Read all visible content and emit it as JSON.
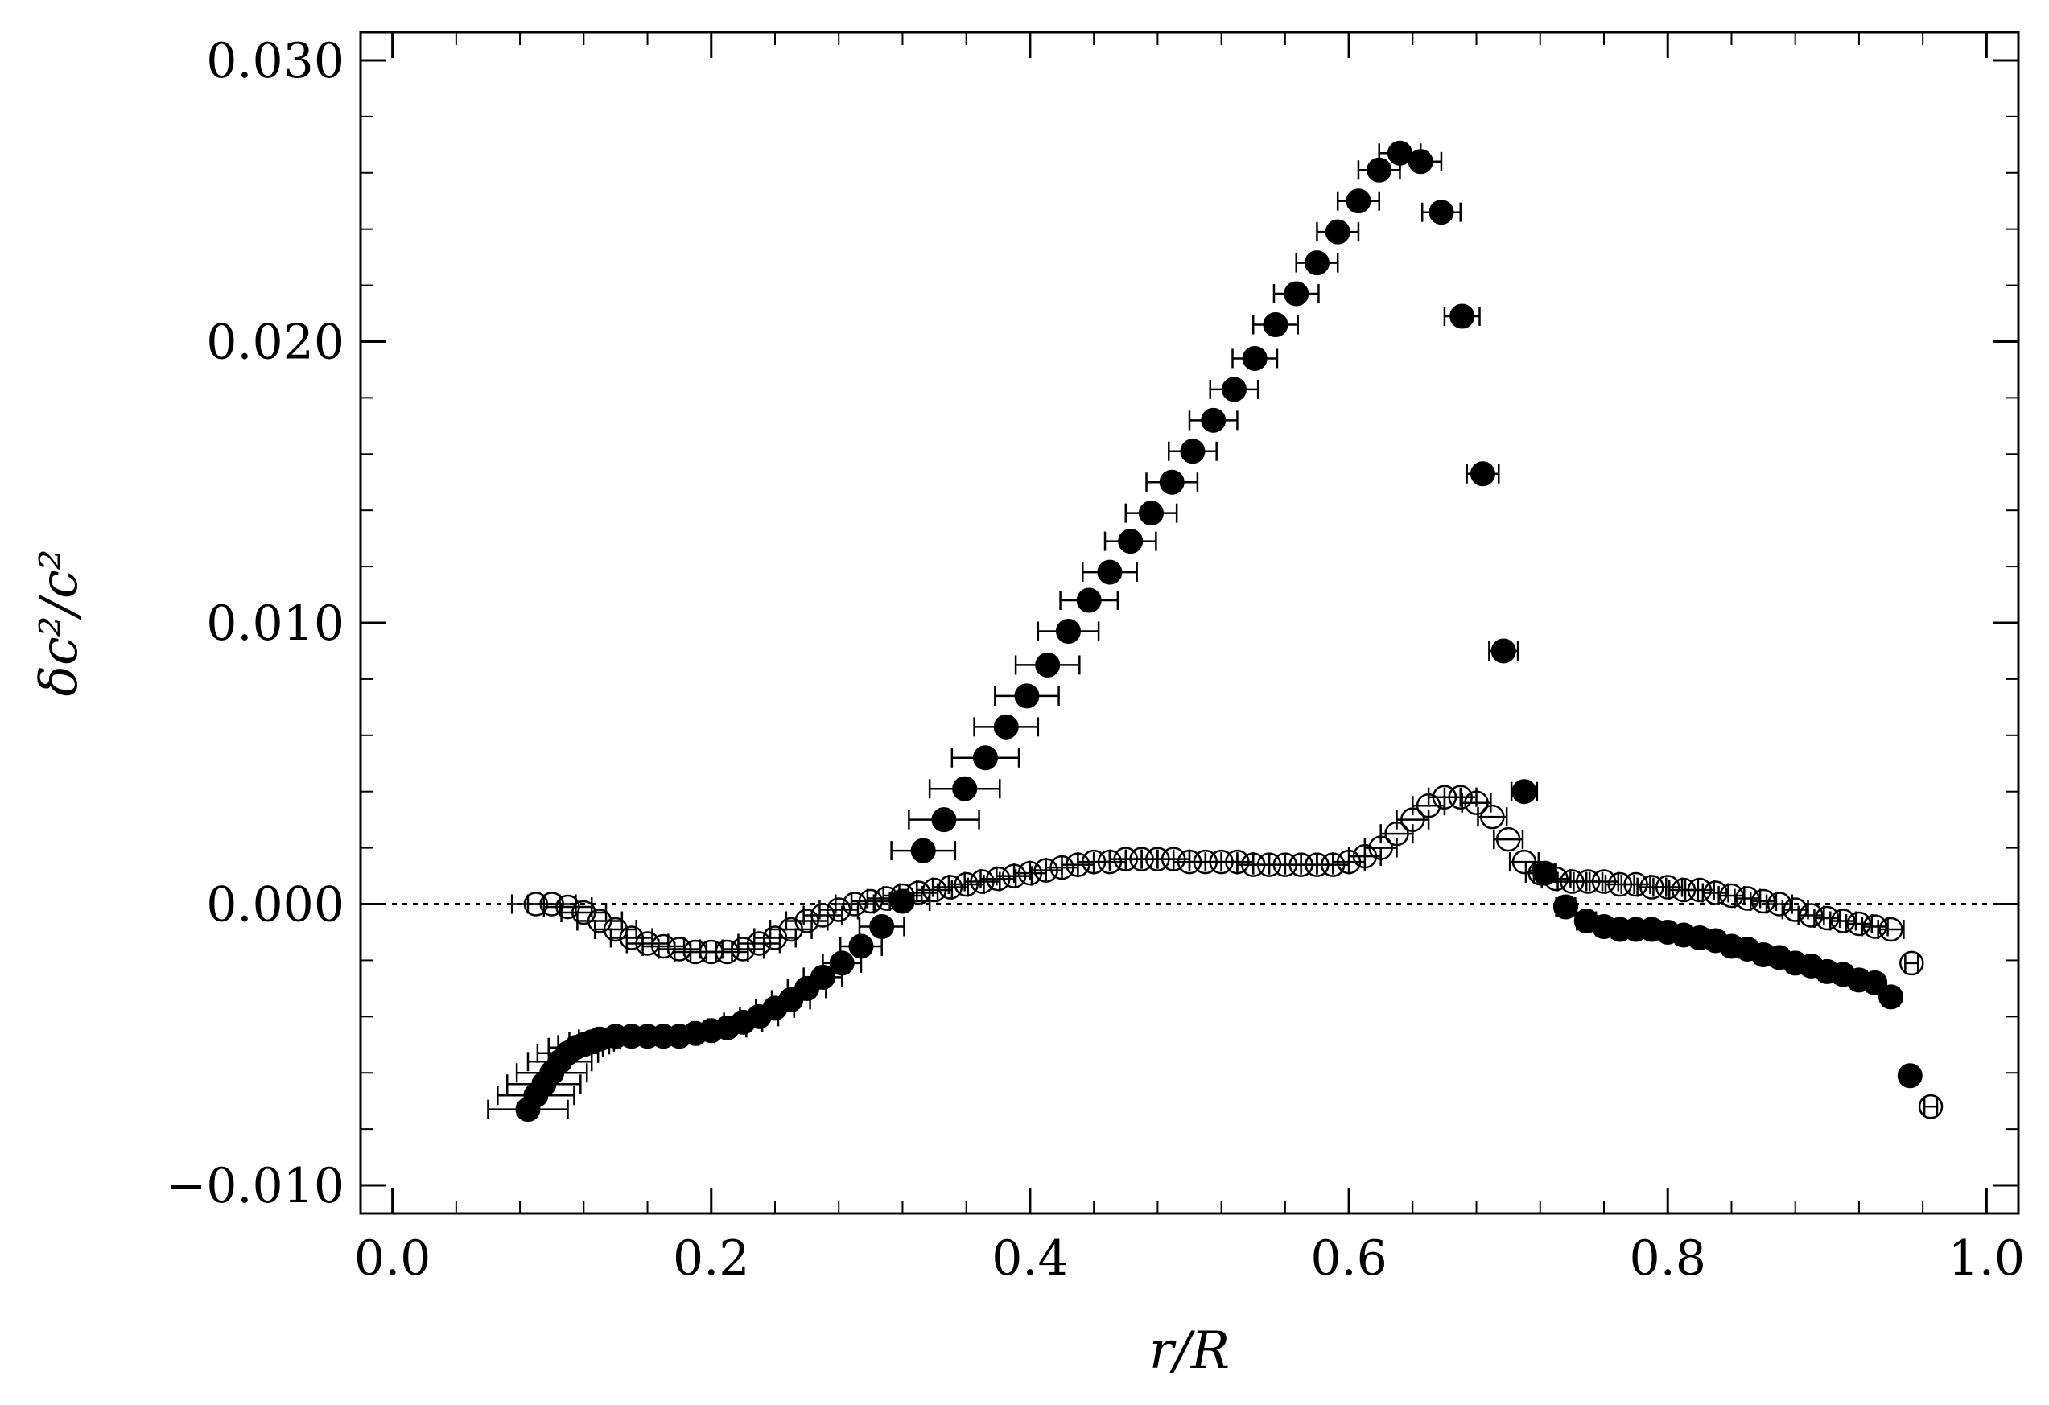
{
  "chart_data": {
    "type": "scatter",
    "xlabel": "r/R",
    "ylabel": "δc²/c²",
    "xlim": [
      -0.02,
      1.02
    ],
    "ylim": [
      -0.011,
      0.031
    ],
    "x_ticks": [
      {
        "value": 0.0,
        "label": "0.0"
      },
      {
        "value": 0.2,
        "label": "0.2"
      },
      {
        "value": 0.4,
        "label": "0.4"
      },
      {
        "value": 0.6,
        "label": "0.6"
      },
      {
        "value": 0.8,
        "label": "0.8"
      },
      {
        "value": 1.0,
        "label": "1.0"
      }
    ],
    "y_ticks": [
      {
        "value": -0.01,
        "label": "−0.010"
      },
      {
        "value": 0.0,
        "label": "0.000"
      },
      {
        "value": 0.01,
        "label": "0.010"
      },
      {
        "value": 0.02,
        "label": "0.020"
      },
      {
        "value": 0.03,
        "label": "0.030"
      }
    ],
    "x_minor_step": 0.04,
    "y_minor_step": 0.002,
    "reference_line": {
      "y": 0.0,
      "style": "dotted"
    },
    "grid": false,
    "legend": "none",
    "series": [
      {
        "marker": "filled-circle",
        "color": "#000000",
        "x": [
          0.085,
          0.09,
          0.095,
          0.1,
          0.105,
          0.11,
          0.115,
          0.12,
          0.125,
          0.13,
          0.14,
          0.15,
          0.16,
          0.17,
          0.18,
          0.19,
          0.2,
          0.21,
          0.22,
          0.23,
          0.24,
          0.25,
          0.26,
          0.27,
          0.282,
          0.294,
          0.307,
          0.32,
          0.333,
          0.346,
          0.359,
          0.372,
          0.385,
          0.398,
          0.411,
          0.424,
          0.437,
          0.45,
          0.463,
          0.476,
          0.489,
          0.502,
          0.515,
          0.528,
          0.541,
          0.554,
          0.567,
          0.58,
          0.593,
          0.606,
          0.619,
          0.632,
          0.645,
          0.658,
          0.671,
          0.684,
          0.697,
          0.71,
          0.723,
          0.736,
          0.749,
          0.76,
          0.77,
          0.78,
          0.79,
          0.8,
          0.81,
          0.82,
          0.83,
          0.84,
          0.85,
          0.86,
          0.87,
          0.88,
          0.89,
          0.9,
          0.91,
          0.92,
          0.93,
          0.94,
          0.952
        ],
        "y": [
          -0.0073,
          -0.0068,
          -0.0064,
          -0.006,
          -0.0056,
          -0.0053,
          -0.0051,
          -0.005,
          -0.0049,
          -0.0048,
          -0.0047,
          -0.0047,
          -0.0047,
          -0.0047,
          -0.0047,
          -0.0046,
          -0.0045,
          -0.0044,
          -0.0042,
          -0.004,
          -0.0037,
          -0.0034,
          -0.003,
          -0.0026,
          -0.0021,
          -0.0015,
          -0.0008,
          0.0001,
          0.0019,
          0.003,
          0.0041,
          0.0052,
          0.0063,
          0.0074,
          0.0085,
          0.0097,
          0.0108,
          0.0118,
          0.0129,
          0.0139,
          0.015,
          0.0161,
          0.0172,
          0.0183,
          0.0194,
          0.0206,
          0.0217,
          0.0228,
          0.0239,
          0.025,
          0.0261,
          0.0267,
          0.0264,
          0.0246,
          0.0209,
          0.0153,
          0.009,
          0.004,
          0.0011,
          -0.0001,
          -0.0006,
          -0.0008,
          -0.0009,
          -0.0009,
          -0.0009,
          -0.001,
          -0.0011,
          -0.0012,
          -0.0013,
          -0.0015,
          -0.0016,
          -0.0018,
          -0.0019,
          -0.0021,
          -0.0022,
          -0.0024,
          -0.0025,
          -0.0027,
          -0.0028,
          -0.0033,
          -0.0061
        ],
        "xerr": [
          0.025,
          0.024,
          0.023,
          0.022,
          0.02,
          0.019,
          0.017,
          0.016,
          0.014,
          0.013,
          0.012,
          0.012,
          0.012,
          0.012,
          0.012,
          0.012,
          0.012,
          0.012,
          0.012,
          0.012,
          0.012,
          0.012,
          0.012,
          0.012,
          0.012,
          0.013,
          0.014,
          0.017,
          0.02,
          0.022,
          0.022,
          0.021,
          0.02,
          0.02,
          0.02,
          0.019,
          0.018,
          0.017,
          0.016,
          0.016,
          0.016,
          0.015,
          0.015,
          0.015,
          0.014,
          0.014,
          0.014,
          0.013,
          0.013,
          0.013,
          0.013,
          0.013,
          0.013,
          0.012,
          0.011,
          0.01,
          0.009,
          0.008,
          0.007,
          0.006,
          0.006,
          0.005,
          0.005,
          0.005,
          0.005,
          0.005,
          0.005,
          0.005,
          0.005,
          0.005,
          0.005,
          0.005,
          0.005,
          0.005,
          0.005,
          0.005,
          0.005,
          0.005,
          0.005,
          0.005,
          0.004
        ]
      },
      {
        "marker": "open-circle",
        "color": "#000000",
        "x": [
          0.09,
          0.1,
          0.11,
          0.12,
          0.13,
          0.14,
          0.15,
          0.16,
          0.17,
          0.18,
          0.19,
          0.2,
          0.21,
          0.22,
          0.23,
          0.24,
          0.25,
          0.26,
          0.27,
          0.28,
          0.29,
          0.3,
          0.31,
          0.32,
          0.33,
          0.34,
          0.35,
          0.36,
          0.37,
          0.38,
          0.39,
          0.4,
          0.41,
          0.42,
          0.43,
          0.44,
          0.45,
          0.46,
          0.47,
          0.48,
          0.49,
          0.5,
          0.51,
          0.52,
          0.53,
          0.54,
          0.55,
          0.56,
          0.57,
          0.58,
          0.59,
          0.6,
          0.61,
          0.62,
          0.63,
          0.64,
          0.65,
          0.66,
          0.67,
          0.68,
          0.69,
          0.7,
          0.71,
          0.72,
          0.73,
          0.74,
          0.75,
          0.76,
          0.77,
          0.78,
          0.79,
          0.8,
          0.81,
          0.82,
          0.83,
          0.84,
          0.85,
          0.86,
          0.87,
          0.88,
          0.89,
          0.9,
          0.91,
          0.92,
          0.93,
          0.94,
          0.953,
          0.965
        ],
        "y": [
          0.0,
          0.0,
          -0.0001,
          -0.0003,
          -0.0006,
          -0.0009,
          -0.0012,
          -0.0014,
          -0.0015,
          -0.0016,
          -0.0017,
          -0.0017,
          -0.0017,
          -0.0016,
          -0.0014,
          -0.0012,
          -0.0009,
          -0.0006,
          -0.0004,
          -0.0002,
          0.0,
          0.0001,
          0.0002,
          0.0003,
          0.0004,
          0.0005,
          0.0006,
          0.0007,
          0.0008,
          0.0009,
          0.001,
          0.0011,
          0.0012,
          0.0013,
          0.0014,
          0.0015,
          0.0015,
          0.0016,
          0.0016,
          0.0016,
          0.0016,
          0.0015,
          0.0015,
          0.0015,
          0.0015,
          0.0014,
          0.0014,
          0.0014,
          0.0014,
          0.0014,
          0.0014,
          0.0015,
          0.0017,
          0.002,
          0.0025,
          0.003,
          0.0035,
          0.0038,
          0.0038,
          0.0036,
          0.0031,
          0.0023,
          0.0015,
          0.0011,
          0.0009,
          0.0008,
          0.0008,
          0.0008,
          0.0007,
          0.0007,
          0.0006,
          0.0006,
          0.0005,
          0.0005,
          0.0004,
          0.0003,
          0.0002,
          0.0001,
          0.0,
          -0.0002,
          -0.0004,
          -0.0005,
          -0.0006,
          -0.0007,
          -0.0008,
          -0.0009,
          -0.0021,
          -0.0072
        ],
        "xerr": [
          0.015,
          0.015,
          0.015,
          0.014,
          0.014,
          0.013,
          0.013,
          0.013,
          0.013,
          0.013,
          0.013,
          0.013,
          0.013,
          0.013,
          0.013,
          0.013,
          0.013,
          0.013,
          0.012,
          0.012,
          0.012,
          0.012,
          0.012,
          0.012,
          0.012,
          0.011,
          0.011,
          0.011,
          0.011,
          0.011,
          0.011,
          0.01,
          0.01,
          0.01,
          0.01,
          0.01,
          0.01,
          0.01,
          0.01,
          0.01,
          0.01,
          0.01,
          0.01,
          0.01,
          0.01,
          0.01,
          0.01,
          0.01,
          0.01,
          0.01,
          0.01,
          0.01,
          0.01,
          0.01,
          0.01,
          0.01,
          0.01,
          0.01,
          0.01,
          0.009,
          0.009,
          0.009,
          0.009,
          0.009,
          0.009,
          0.009,
          0.009,
          0.009,
          0.009,
          0.009,
          0.009,
          0.009,
          0.009,
          0.009,
          0.008,
          0.008,
          0.008,
          0.008,
          0.008,
          0.008,
          0.008,
          0.008,
          0.008,
          0.008,
          0.008,
          0.008,
          0.004,
          0.004
        ]
      }
    ]
  }
}
